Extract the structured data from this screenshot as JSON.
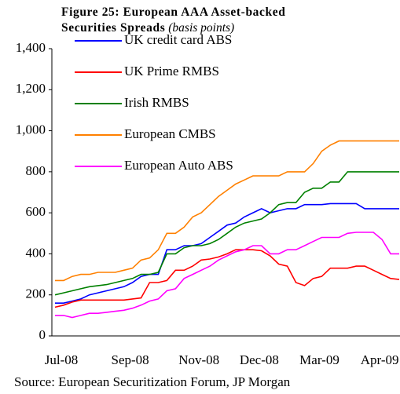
{
  "chart_data": {
    "type": "line",
    "title": "Figure 25: European AAA Asset-backed Securities Spreads",
    "subtitle": "(basis points)",
    "source": "Source: European Securitization Forum, JP Morgan",
    "categories": [
      "Jul-08",
      null,
      null,
      null,
      null,
      null,
      null,
      null,
      "Sep-08",
      null,
      null,
      null,
      null,
      null,
      null,
      null,
      "Nov-08",
      null,
      null,
      null,
      null,
      null,
      null,
      "Dec-08",
      null,
      null,
      null,
      null,
      null,
      null,
      "Mar-09",
      null,
      null,
      null,
      null,
      null,
      null,
      "Apr-09",
      null,
      null,
      null
    ],
    "series": [
      {
        "name": "UK credit card ABS",
        "color": "#0000ff",
        "values": [
          160,
          160,
          170,
          180,
          200,
          210,
          220,
          230,
          240,
          260,
          290,
          300,
          300,
          420,
          420,
          440,
          440,
          450,
          480,
          510,
          540,
          550,
          580,
          600,
          620,
          600,
          610,
          620,
          620,
          640,
          640,
          640,
          645,
          645,
          645,
          645,
          620,
          620,
          620,
          620,
          620
        ]
      },
      {
        "name": "UK Prime RMBS",
        "color": "#ff0000",
        "values": [
          140,
          150,
          165,
          175,
          175,
          175,
          175,
          175,
          175,
          180,
          185,
          260,
          260,
          270,
          320,
          320,
          340,
          370,
          375,
          385,
          400,
          420,
          420,
          420,
          415,
          390,
          350,
          340,
          260,
          245,
          280,
          290,
          330,
          330,
          330,
          340,
          340,
          320,
          300,
          280,
          275
        ]
      },
      {
        "name": "Irish RMBS",
        "color": "#008000",
        "values": [
          200,
          210,
          220,
          230,
          240,
          245,
          250,
          260,
          270,
          280,
          300,
          300,
          310,
          400,
          400,
          430,
          440,
          440,
          450,
          470,
          500,
          530,
          550,
          560,
          570,
          600,
          640,
          650,
          650,
          700,
          720,
          720,
          750,
          750,
          800,
          800,
          800,
          800,
          800,
          800,
          800
        ]
      },
      {
        "name": "European CMBS",
        "color": "#ff8000",
        "values": [
          270,
          270,
          290,
          300,
          300,
          310,
          310,
          310,
          320,
          330,
          370,
          380,
          420,
          500,
          500,
          530,
          580,
          600,
          640,
          680,
          710,
          740,
          760,
          780,
          780,
          780,
          780,
          800,
          800,
          800,
          840,
          900,
          930,
          950,
          950,
          950,
          950,
          950,
          950,
          950,
          950
        ]
      },
      {
        "name": "European Auto ABS",
        "color": "#ff00ff",
        "values": [
          100,
          100,
          90,
          100,
          110,
          110,
          115,
          120,
          125,
          135,
          150,
          170,
          180,
          220,
          230,
          280,
          300,
          320,
          340,
          370,
          390,
          410,
          420,
          440,
          440,
          400,
          400,
          420,
          420,
          440,
          460,
          480,
          480,
          480,
          500,
          505,
          505,
          505,
          470,
          400,
          400
        ]
      }
    ],
    "ylim": [
      0,
      1400
    ],
    "yticks": [
      0,
      200,
      400,
      600,
      800,
      {
        "value": 1000,
        "label": "1,000"
      },
      {
        "value": 1200,
        "label": "1,200"
      },
      {
        "value": 1400,
        "label": "1,400"
      }
    ],
    "grid": false,
    "legend": "top-left"
  }
}
